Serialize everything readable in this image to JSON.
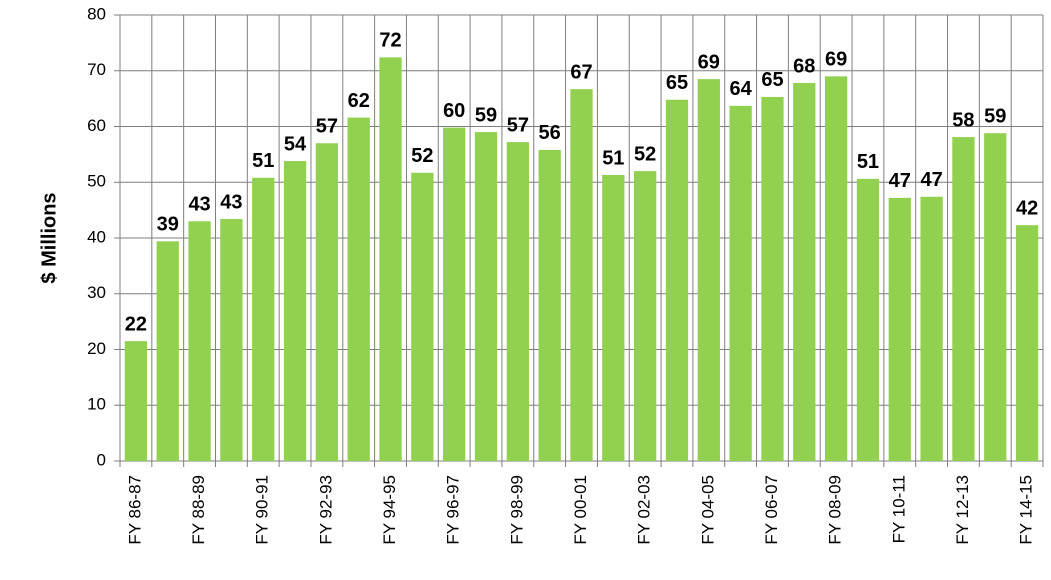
{
  "chart_data": {
    "type": "bar",
    "ylabel": "$ Millions",
    "categories": [
      "FY 86-87",
      null,
      "FY 88-89",
      null,
      "FY 90-91",
      null,
      "FY 92-93",
      null,
      "FY 94-95",
      null,
      "FY 96-97",
      null,
      "FY 98-99",
      null,
      "FY 00-01",
      null,
      "FY 02-03",
      null,
      "FY 04-05",
      null,
      "FY 06-07",
      null,
      "FY 08-09",
      null,
      "FY 10-11",
      null,
      "FY 12-13",
      null,
      "FY 14-15"
    ],
    "values": [
      21.5,
      39.4,
      43.0,
      43.4,
      50.8,
      53.8,
      57.0,
      61.6,
      72.4,
      51.7,
      59.8,
      59.0,
      57.2,
      55.8,
      66.7,
      51.3,
      52.0,
      64.8,
      68.5,
      63.7,
      65.3,
      67.8,
      69.0,
      50.6,
      47.2,
      47.4,
      58.1,
      58.8,
      42.3
    ],
    "value_labels": [
      "22",
      "39",
      "43",
      "43",
      "51",
      "54",
      "57",
      "62",
      "72",
      "52",
      "60",
      "59",
      "57",
      "56",
      "67",
      "51",
      "52",
      "65",
      "69",
      "64",
      "65",
      "68",
      "69",
      "51",
      "47",
      "47",
      "58",
      "59",
      "42"
    ],
    "color": "#92d050",
    "ylim": [
      0,
      80
    ],
    "yticks": [
      0,
      10,
      20,
      30,
      40,
      50,
      60,
      70,
      80
    ],
    "grid": true
  }
}
